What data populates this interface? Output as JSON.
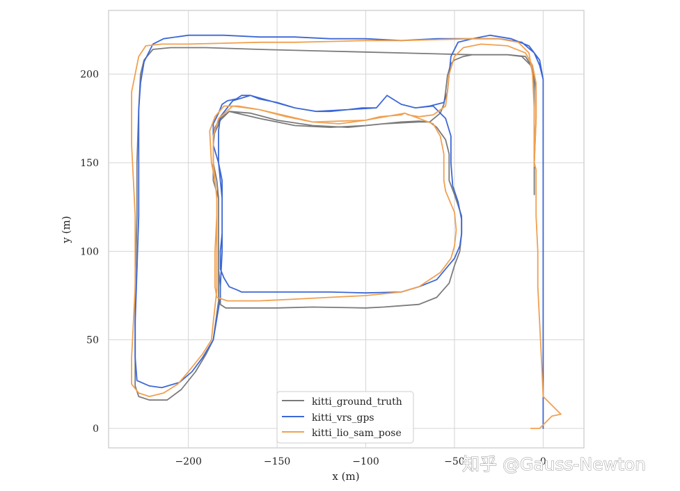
{
  "watermark": "知乎 @Gauss-Newton",
  "chart_data": {
    "type": "line",
    "title": "",
    "xlabel": "x (m)",
    "ylabel": "y (m)",
    "xlim": [
      -245,
      23
    ],
    "ylim": [
      -11,
      236
    ],
    "xticks": [
      -200,
      -150,
      -100,
      -50,
      0
    ],
    "yticks": [
      0,
      50,
      100,
      150,
      200
    ],
    "xtick_labels": [
      "−200",
      "−150",
      "−100",
      "−50",
      "0"
    ],
    "ytick_labels": [
      "0",
      "50",
      "100",
      "150",
      "200"
    ],
    "grid": true,
    "legend_position": "bottom-center",
    "series": [
      {
        "name": "kitti_ground_truth",
        "color": "#7a7a7a",
        "points": [
          [
            -5,
            132
          ],
          [
            -5,
            150
          ],
          [
            -4,
            175
          ],
          [
            -4,
            190
          ],
          [
            -5,
            198
          ],
          [
            -7,
            205
          ],
          [
            -12,
            210
          ],
          [
            -20,
            211
          ],
          [
            -40,
            211
          ],
          [
            -45,
            210
          ],
          [
            -50,
            208
          ],
          [
            -52,
            206
          ],
          [
            -54,
            199
          ],
          [
            -55,
            190
          ],
          [
            -56,
            183
          ],
          [
            -58,
            178
          ],
          [
            -64,
            173
          ],
          [
            -70,
            173
          ],
          [
            -90,
            172
          ],
          [
            -110,
            170
          ],
          [
            -130,
            171
          ],
          [
            -150,
            174
          ],
          [
            -165,
            178
          ],
          [
            -177,
            179
          ],
          [
            -182,
            175
          ],
          [
            -185,
            170
          ],
          [
            -186,
            160
          ],
          [
            -186,
            140
          ],
          [
            -183,
            130
          ],
          [
            -183,
            120
          ],
          [
            -183,
            110
          ],
          [
            -183,
            100
          ],
          [
            -183,
            90
          ],
          [
            -182,
            80
          ],
          [
            -182,
            70
          ],
          [
            -179,
            68
          ],
          [
            -170,
            68
          ],
          [
            -150,
            68
          ],
          [
            -130,
            68.5
          ],
          [
            -100,
            68
          ],
          [
            -90,
            68.5
          ],
          [
            -70,
            70
          ],
          [
            -60,
            74
          ],
          [
            -53,
            82
          ],
          [
            -50,
            92
          ],
          [
            -47,
            100
          ],
          [
            -46,
            110
          ],
          [
            -46,
            120
          ],
          [
            -50,
            132
          ],
          [
            -53,
            140
          ],
          [
            -53,
            155
          ],
          [
            -55,
            163
          ],
          [
            -60,
            170
          ],
          [
            -64,
            173
          ],
          [
            -70,
            173.5
          ],
          [
            -80,
            173
          ],
          [
            -100,
            171
          ],
          [
            -120,
            170
          ],
          [
            -140,
            171
          ],
          [
            -160,
            175
          ],
          [
            -177,
            179
          ],
          [
            -182,
            174
          ],
          [
            -186,
            165
          ],
          [
            -186,
            150
          ],
          [
            -184,
            140
          ],
          [
            -183,
            130
          ],
          [
            -183,
            80
          ],
          [
            -183,
            72
          ],
          [
            -186,
            50
          ],
          [
            -190,
            42
          ],
          [
            -196,
            32
          ],
          [
            -204,
            22
          ],
          [
            -212,
            16
          ],
          [
            -222,
            16
          ],
          [
            -228,
            18
          ],
          [
            -230,
            24
          ],
          [
            -230,
            40
          ],
          [
            -230,
            80
          ],
          [
            -229,
            120
          ],
          [
            -229,
            150
          ],
          [
            -228,
            180
          ],
          [
            -227,
            200
          ],
          [
            -225,
            208
          ],
          [
            -220,
            214
          ],
          [
            -210,
            215
          ],
          [
            -190,
            215
          ],
          [
            -160,
            214
          ],
          [
            -120,
            213
          ],
          [
            -80,
            212
          ],
          [
            -40,
            211
          ],
          [
            -20,
            211
          ],
          [
            -10,
            210
          ],
          [
            -6,
            204
          ],
          [
            -5,
            190
          ],
          [
            -5,
            170
          ],
          [
            -5,
            150
          ],
          [
            -5,
            132
          ]
        ]
      },
      {
        "name": "kitti_vrs_gps",
        "color": "#3b67d6",
        "points": [
          [
            0,
            0
          ],
          [
            0,
            20
          ],
          [
            0,
            60
          ],
          [
            0,
            100
          ],
          [
            0,
            130
          ],
          [
            0,
            160
          ],
          [
            0,
            180
          ],
          [
            0,
            197
          ],
          [
            -2,
            208
          ],
          [
            -8,
            216
          ],
          [
            -18,
            220
          ],
          [
            -30,
            222
          ],
          [
            -40,
            220
          ],
          [
            -48,
            218
          ],
          [
            -52,
            210
          ],
          [
            -53,
            200
          ],
          [
            -54,
            190
          ],
          [
            -56,
            184
          ],
          [
            -64,
            182
          ],
          [
            -72,
            181
          ],
          [
            -80,
            183
          ],
          [
            -88,
            188
          ],
          [
            -94,
            181
          ],
          [
            -102,
            181
          ],
          [
            -110,
            180
          ],
          [
            -120,
            179
          ],
          [
            -128,
            179
          ],
          [
            -140,
            181
          ],
          [
            -150,
            184
          ],
          [
            -160,
            186
          ],
          [
            -165,
            188
          ],
          [
            -170,
            188
          ],
          [
            -173,
            186
          ],
          [
            -178,
            185
          ],
          [
            -181,
            183
          ],
          [
            -183,
            178
          ],
          [
            -186,
            172
          ],
          [
            -186,
            160
          ],
          [
            -183,
            150
          ],
          [
            -181,
            140
          ],
          [
            -181,
            130
          ],
          [
            -181,
            120
          ],
          [
            -181,
            110
          ],
          [
            -182,
            100
          ],
          [
            -182,
            90
          ],
          [
            -180,
            85
          ],
          [
            -177,
            80
          ],
          [
            -172,
            78
          ],
          [
            -170,
            77
          ],
          [
            -160,
            77
          ],
          [
            -140,
            77
          ],
          [
            -120,
            77
          ],
          [
            -100,
            76.5
          ],
          [
            -80,
            77
          ],
          [
            -70,
            80
          ],
          [
            -60,
            84
          ],
          [
            -55,
            90
          ],
          [
            -50,
            96
          ],
          [
            -47,
            103
          ],
          [
            -46,
            110
          ],
          [
            -46,
            118
          ],
          [
            -48,
            128
          ],
          [
            -51,
            137
          ],
          [
            -52,
            150
          ],
          [
            -52,
            165
          ],
          [
            -55,
            175
          ],
          [
            -62,
            182
          ],
          [
            -72,
            181
          ],
          [
            -80,
            183
          ],
          [
            -88,
            188
          ],
          [
            -94,
            181
          ],
          [
            -110,
            180
          ],
          [
            -128,
            179
          ],
          [
            -140,
            181
          ],
          [
            -165,
            188
          ],
          [
            -175,
            185
          ],
          [
            -182,
            176
          ],
          [
            -183,
            168
          ],
          [
            -183,
            150
          ],
          [
            -181,
            130
          ],
          [
            -181,
            100
          ],
          [
            -182,
            80
          ],
          [
            -182,
            74
          ],
          [
            -184,
            62
          ],
          [
            -186,
            50
          ],
          [
            -192,
            40
          ],
          [
            -198,
            32
          ],
          [
            -205,
            26
          ],
          [
            -215,
            23
          ],
          [
            -222,
            24
          ],
          [
            -229,
            27
          ],
          [
            -230,
            40
          ],
          [
            -230,
            60
          ],
          [
            -229,
            90
          ],
          [
            -228,
            120
          ],
          [
            -228,
            150
          ],
          [
            -228,
            180
          ],
          [
            -227,
            195
          ],
          [
            -225,
            207
          ],
          [
            -220,
            217
          ],
          [
            -214,
            220
          ],
          [
            -200,
            222
          ],
          [
            -180,
            222
          ],
          [
            -160,
            221
          ],
          [
            -140,
            221
          ],
          [
            -120,
            220
          ],
          [
            -100,
            220
          ],
          [
            -80,
            219
          ],
          [
            -60,
            220
          ],
          [
            -40,
            220
          ],
          [
            -25,
            220
          ],
          [
            -12,
            218
          ],
          [
            -5,
            212
          ],
          [
            -2,
            205
          ],
          [
            0,
            197
          ]
        ]
      },
      {
        "name": "kitti_lio_sam_pose",
        "color": "#f0a050",
        "points": [
          [
            -7,
            0
          ],
          [
            -2,
            0
          ],
          [
            5,
            7
          ],
          [
            10,
            8
          ],
          [
            0,
            18
          ],
          [
            -1,
            40
          ],
          [
            -2,
            60
          ],
          [
            -3,
            80
          ],
          [
            -3,
            100
          ],
          [
            -4,
            120
          ],
          [
            -4,
            146
          ],
          [
            -5,
            150
          ],
          [
            -4,
            175
          ],
          [
            -4,
            195
          ],
          [
            -6,
            205
          ],
          [
            -10,
            212
          ],
          [
            -20,
            216
          ],
          [
            -35,
            217
          ],
          [
            -45,
            215
          ],
          [
            -50,
            210
          ],
          [
            -53,
            200
          ],
          [
            -54,
            190
          ],
          [
            -55,
            182
          ],
          [
            -62,
            177
          ],
          [
            -70,
            176
          ],
          [
            -76,
            177
          ],
          [
            -78,
            178
          ],
          [
            -80,
            177
          ],
          [
            -92,
            176
          ],
          [
            -100,
            174
          ],
          [
            -115,
            172
          ],
          [
            -130,
            173
          ],
          [
            -145,
            176
          ],
          [
            -160,
            180
          ],
          [
            -172,
            182
          ],
          [
            -180,
            182
          ],
          [
            -185,
            176
          ],
          [
            -188,
            168
          ],
          [
            -187,
            150
          ],
          [
            -185,
            140
          ],
          [
            -184,
            130
          ],
          [
            -184,
            120
          ],
          [
            -185,
            100
          ],
          [
            -185,
            80
          ],
          [
            -184,
            74
          ],
          [
            -178,
            72
          ],
          [
            -160,
            72
          ],
          [
            -140,
            73
          ],
          [
            -120,
            74
          ],
          [
            -100,
            75
          ],
          [
            -80,
            77
          ],
          [
            -70,
            80
          ],
          [
            -58,
            88
          ],
          [
            -52,
            96
          ],
          [
            -50,
            103
          ],
          [
            -49,
            112
          ],
          [
            -50,
            122
          ],
          [
            -55,
            134
          ],
          [
            -56,
            140
          ],
          [
            -56,
            155
          ],
          [
            -58,
            165
          ],
          [
            -62,
            172
          ],
          [
            -70,
            175
          ],
          [
            -78,
            178
          ],
          [
            -100,
            174
          ],
          [
            -130,
            173
          ],
          [
            -160,
            180
          ],
          [
            -175,
            182
          ],
          [
            -183,
            175
          ],
          [
            -186,
            165
          ],
          [
            -186,
            150
          ],
          [
            -184,
            130
          ],
          [
            -184,
            100
          ],
          [
            -184,
            78
          ],
          [
            -186,
            60
          ],
          [
            -187,
            50
          ],
          [
            -192,
            42
          ],
          [
            -200,
            32
          ],
          [
            -206,
            25
          ],
          [
            -214,
            20
          ],
          [
            -222,
            18
          ],
          [
            -228,
            20
          ],
          [
            -232,
            25
          ],
          [
            -232,
            40
          ],
          [
            -231,
            60
          ],
          [
            -230,
            80
          ],
          [
            -230,
            100
          ],
          [
            -230,
            120
          ],
          [
            -231,
            140
          ],
          [
            -232,
            160
          ],
          [
            -232,
            174
          ],
          [
            -232,
            190
          ],
          [
            -230,
            200
          ],
          [
            -228,
            210
          ],
          [
            -224,
            216
          ],
          [
            -215,
            217
          ],
          [
            -200,
            217
          ],
          [
            -180,
            217.5
          ],
          [
            -160,
            218
          ],
          [
            -140,
            218
          ],
          [
            -120,
            218.5
          ],
          [
            -100,
            219
          ],
          [
            -80,
            219
          ],
          [
            -60,
            219.5
          ],
          [
            -40,
            220
          ],
          [
            -25,
            220
          ],
          [
            -14,
            218
          ],
          [
            -8,
            212
          ],
          [
            -6,
            200
          ],
          [
            -5,
            180
          ],
          [
            -5,
            160
          ],
          [
            -5,
            148
          ]
        ]
      }
    ]
  }
}
